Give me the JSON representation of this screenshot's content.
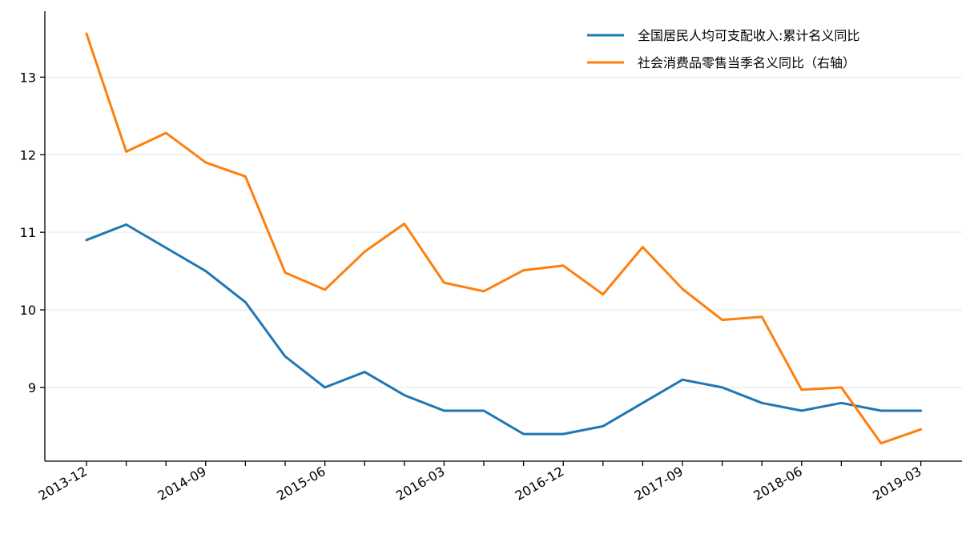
{
  "chart_data": {
    "type": "line",
    "title": "",
    "xlabel": "",
    "ylabel": "",
    "x": [
      "2013-12",
      "2014-03",
      "2014-06",
      "2014-09",
      "2014-12",
      "2015-03",
      "2015-06",
      "2015-09",
      "2015-12",
      "2016-03",
      "2016-06",
      "2016-09",
      "2016-12",
      "2017-03",
      "2017-06",
      "2017-09",
      "2017-12",
      "2018-03",
      "2018-06",
      "2018-09",
      "2018-12",
      "2019-03"
    ],
    "xtick_labels": [
      "2013-12",
      "2014-09",
      "2015-06",
      "2016-03",
      "2016-12",
      "2017-09",
      "2018-06",
      "2019-03"
    ],
    "ylim": [
      8.05,
      13.85
    ],
    "yticks": [
      9,
      10,
      11,
      12,
      13
    ],
    "grid": "horizontal",
    "legend_position": "top-right",
    "series": [
      {
        "name": "全国居民人均可支配收入:累计名义同比",
        "color": "#1f77b4",
        "values": [
          10.9,
          11.1,
          10.8,
          10.5,
          10.1,
          9.4,
          9.0,
          9.2,
          8.9,
          8.7,
          8.7,
          8.4,
          8.4,
          8.5,
          8.8,
          9.1,
          9.0,
          8.8,
          8.7,
          8.8,
          8.7,
          8.7
        ]
      },
      {
        "name": "社会消费品零售当季名义同比（右轴）",
        "color": "#ff7f0e",
        "values": [
          13.56,
          12.04,
          12.28,
          11.9,
          11.72,
          10.48,
          10.26,
          10.75,
          11.11,
          10.35,
          10.24,
          10.51,
          10.57,
          10.2,
          10.81,
          10.27,
          9.87,
          9.91,
          8.97,
          9.0,
          8.28,
          8.46
        ]
      }
    ]
  }
}
